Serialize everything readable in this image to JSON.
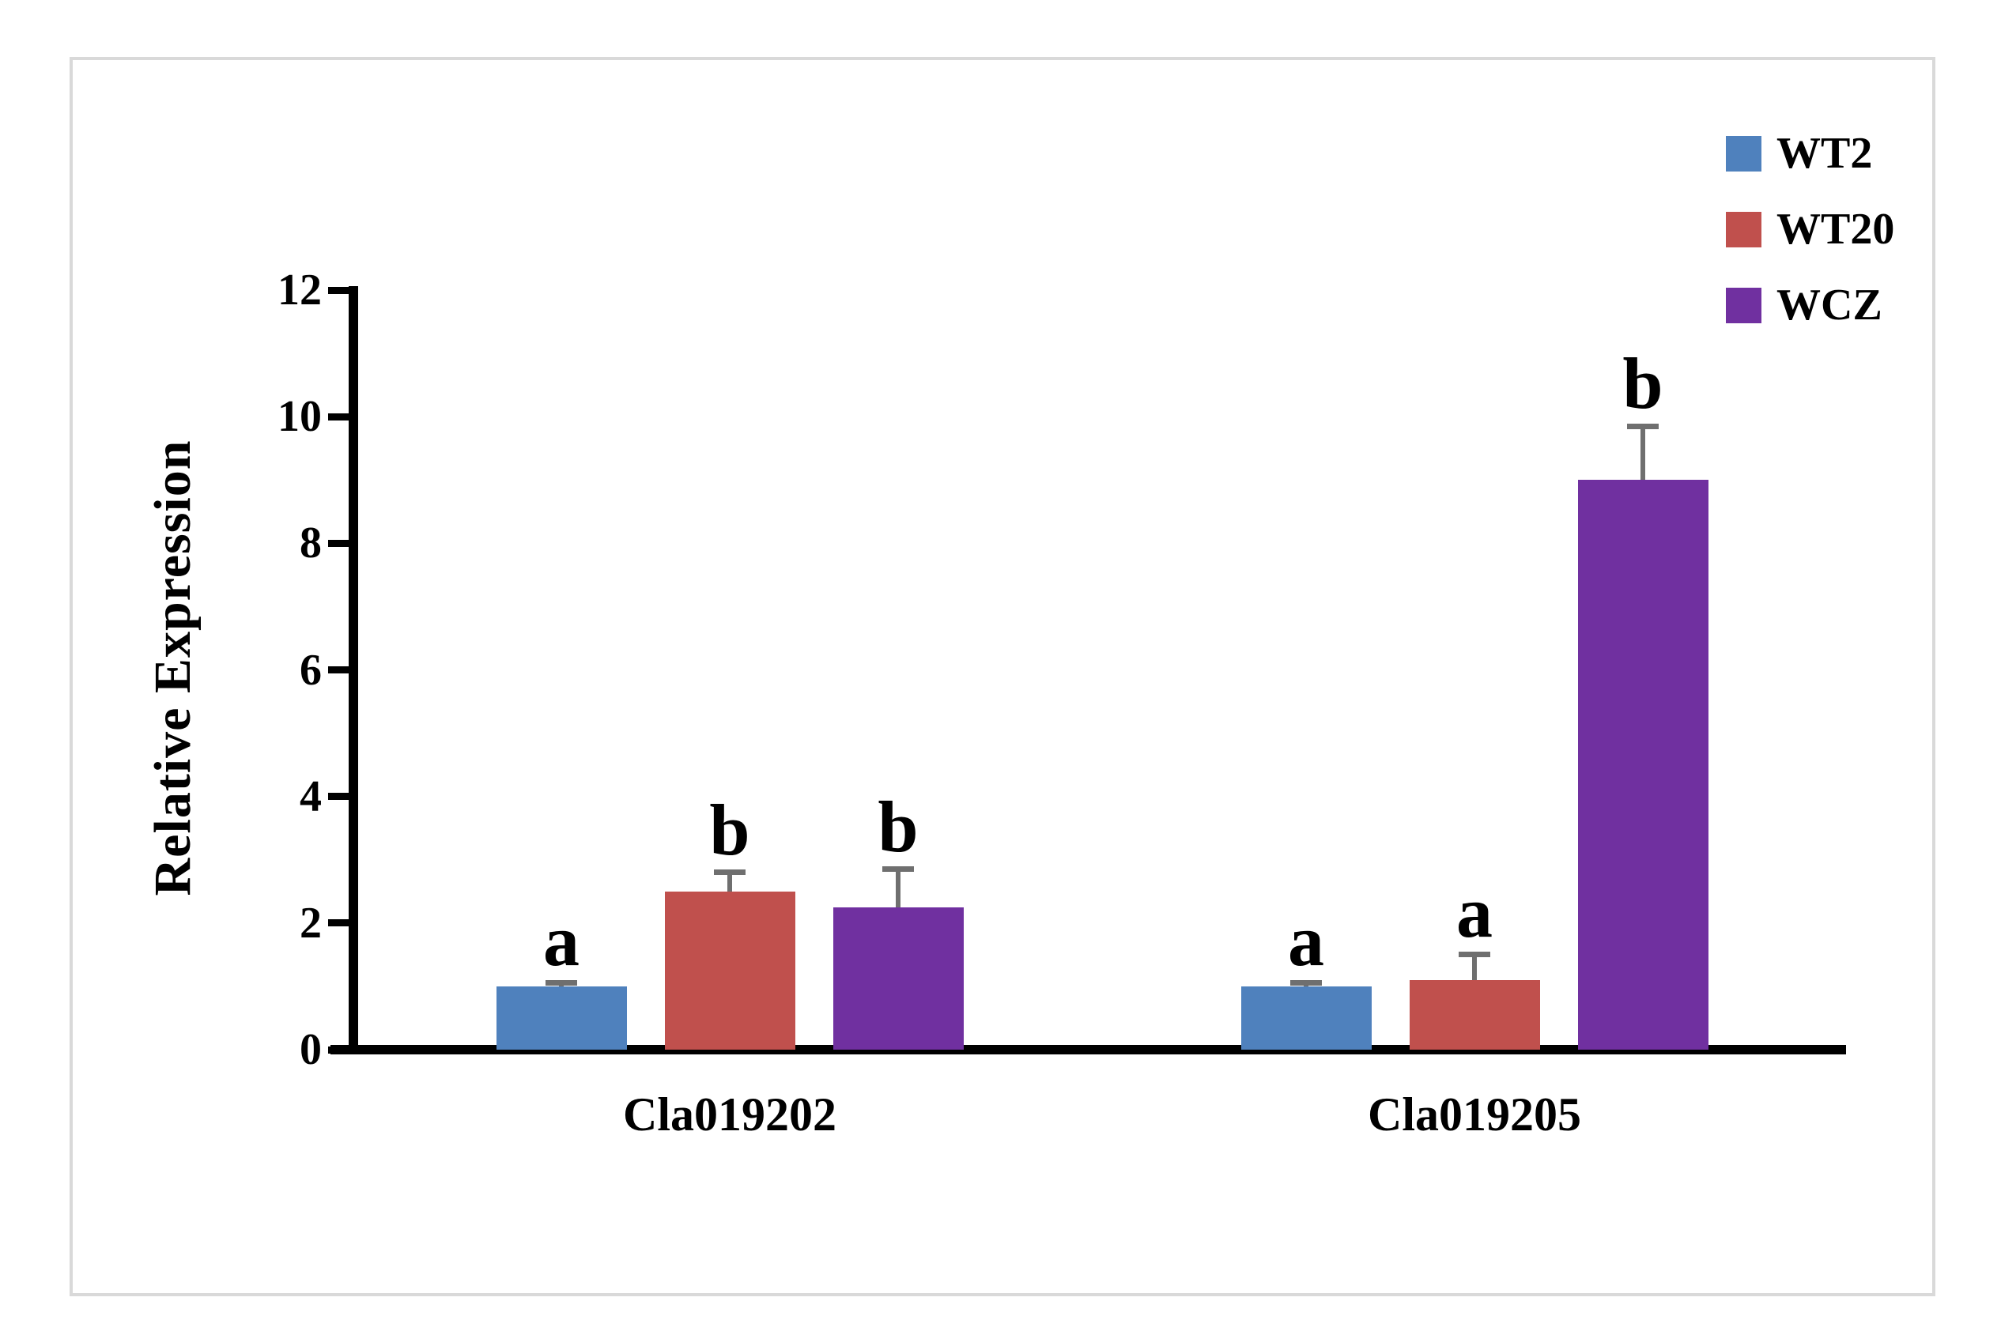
{
  "figure": {
    "border_color": "#d9d9d9",
    "background_color": "#ffffff",
    "text_color": "#000000"
  },
  "chart_data": {
    "type": "bar",
    "title": "",
    "xlabel": "",
    "ylabel": "Relative Expression",
    "ylim": [
      0,
      12
    ],
    "yticks": [
      0,
      2,
      4,
      6,
      8,
      10,
      12
    ],
    "grid": false,
    "legend_position": "top-right",
    "error_bar_color": "#6f6f6f",
    "categories": [
      "Cla019202",
      "Cla019205"
    ],
    "series": [
      {
        "name": "WT2",
        "color": "#4f81bd",
        "values": [
          1.0,
          1.0
        ],
        "errors_plus": [
          0.05,
          0.05
        ],
        "sig_letters": [
          "a",
          "a"
        ]
      },
      {
        "name": "WT20",
        "color": "#c0504d",
        "values": [
          2.5,
          1.1
        ],
        "errors_plus": [
          0.3,
          0.4
        ],
        "sig_letters": [
          "b",
          "a"
        ]
      },
      {
        "name": "WCZ",
        "color": "#7030a0",
        "values": [
          2.25,
          9.0
        ],
        "errors_plus": [
          0.6,
          0.85
        ],
        "sig_letters": [
          "b",
          "b"
        ]
      }
    ]
  }
}
